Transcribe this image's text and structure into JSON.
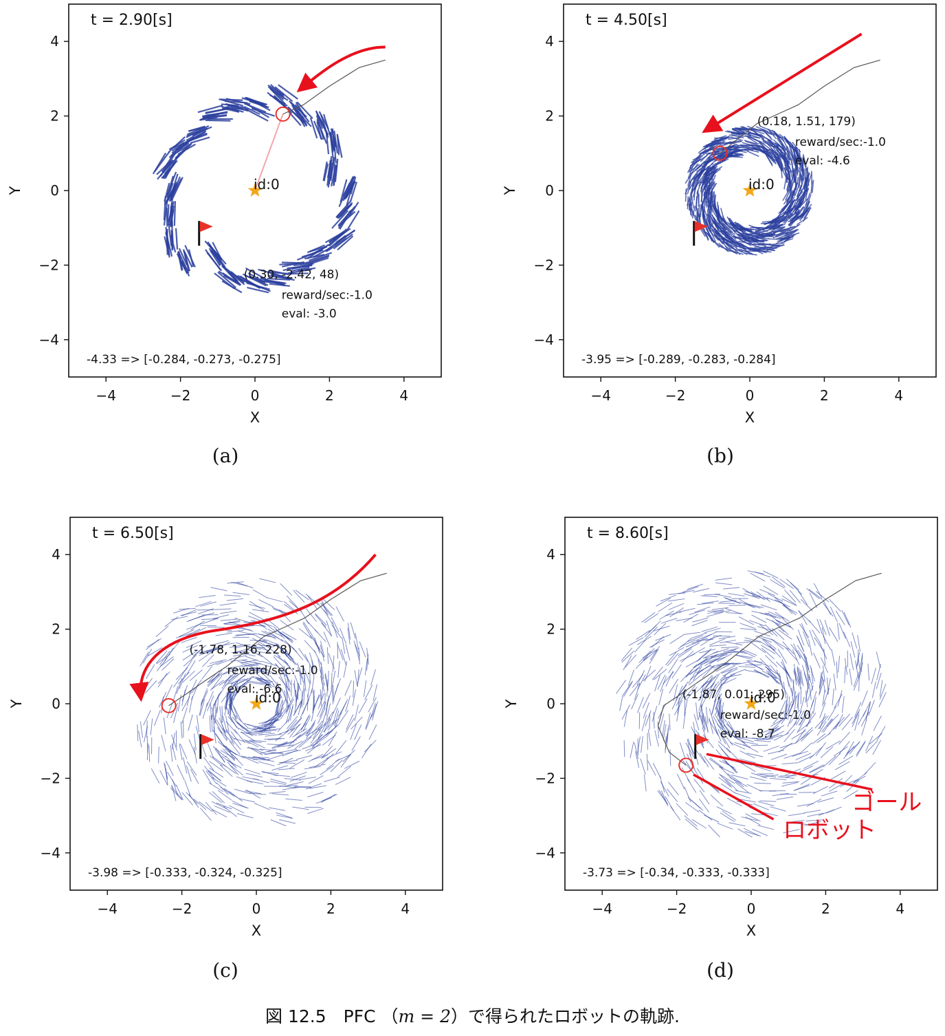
{
  "colors": {
    "arrow": "#2b3f9e",
    "robot": "#e8312a",
    "goal_flag": "#e8312a",
    "star": "#f2a71b",
    "trajectory": "#555555",
    "annotation": "#e8101c",
    "link": "#f2a6b0"
  },
  "panels": [
    {
      "label": "(a)",
      "time_label": "t = 2.90[s]",
      "robot_label": "(0.30, -2.42, 48)",
      "reward_label": "reward/sec:-1.0",
      "eval_label": "eval: -3.0",
      "id_label": "id:0",
      "bottom_label": "-4.33 => [-0.284, -0.273, -0.275]",
      "robot": [
        0.75,
        2.05
      ],
      "goal": [
        -1.5,
        -1.0
      ],
      "particle_spread": "clustered",
      "particle_radius": 2.5
    },
    {
      "label": "(b)",
      "time_label": "t = 4.50[s]",
      "robot_label": "(0.18, 1.51, 179)",
      "reward_label": "reward/sec:-1.0",
      "eval_label": "eval: -4.6",
      "id_label": "id:0",
      "bottom_label": "-3.95 => [-0.289, -0.283, -0.284]",
      "robot": [
        -0.8,
        1.0
      ],
      "goal": [
        -1.5,
        -1.0
      ],
      "particle_spread": "ring",
      "particle_radius": 1.4
    },
    {
      "label": "(c)",
      "time_label": "t = 6.50[s]",
      "robot_label": "(-1.78, 1.16, 228)",
      "reward_label": "reward/sec:-1.0",
      "eval_label": "eval: -6.6",
      "id_label": "id:0",
      "bottom_label": "-3.98 => [-0.333, -0.324, -0.325]",
      "robot": [
        -2.35,
        -0.05
      ],
      "goal": [
        -1.5,
        -1.0
      ],
      "particle_spread": "wide",
      "particle_radius": 2.0
    },
    {
      "label": "(d)",
      "time_label": "t = 8.60[s]",
      "robot_label": "(-1.87, 0.01, 295)",
      "reward_label": "reward/sec:-1.0",
      "eval_label": "eval: -8.7",
      "id_label": "id:0",
      "bottom_label": "-3.73 => [-0.34, -0.333, -0.333]",
      "robot": [
        -1.75,
        -1.65
      ],
      "goal": [
        -1.5,
        -1.0
      ],
      "particle_spread": "wide",
      "particle_radius": 2.3,
      "annotations": {
        "goal": "ゴール",
        "robot": "ロボット"
      }
    }
  ],
  "axes": {
    "xlabel": "X",
    "ylabel": "Y",
    "xlim": [
      -5,
      5
    ],
    "ylim": [
      -5,
      5
    ],
    "ticks": [
      -4,
      -2,
      0,
      2,
      4
    ],
    "tick_labels": [
      "−4",
      "−2",
      "0",
      "2",
      "4"
    ]
  },
  "caption": {
    "prefix": "図 12.5　PFC （",
    "math": "m = 2",
    "suffix": "）で得られたロボットの軌跡."
  }
}
